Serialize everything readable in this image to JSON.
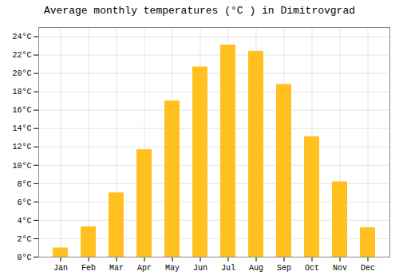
{
  "chart_data": {
    "type": "bar",
    "title": "Average monthly temperatures (°C ) in Dimitrovgrad",
    "categories": [
      "Jan",
      "Feb",
      "Mar",
      "Apr",
      "May",
      "Jun",
      "Jul",
      "Aug",
      "Sep",
      "Oct",
      "Nov",
      "Dec"
    ],
    "values": [
      1.0,
      3.3,
      7.0,
      11.7,
      17.0,
      20.7,
      23.1,
      22.4,
      18.8,
      13.1,
      8.2,
      3.2
    ],
    "color": "#FFC020",
    "ylim": [
      0,
      25
    ],
    "yticks": [
      {
        "value": 0,
        "label": "0°C"
      },
      {
        "value": 2,
        "label": "2°C"
      },
      {
        "value": 4,
        "label": "4°C"
      },
      {
        "value": 6,
        "label": "6°C"
      },
      {
        "value": 8,
        "label": "8°C"
      },
      {
        "value": 10,
        "label": "10°C"
      },
      {
        "value": 12,
        "label": "12°C"
      },
      {
        "value": 14,
        "label": "14°C"
      },
      {
        "value": 16,
        "label": "16°C"
      },
      {
        "value": 18,
        "label": "18°C"
      },
      {
        "value": 20,
        "label": "20°C"
      },
      {
        "value": 22,
        "label": "22°C"
      },
      {
        "value": 24,
        "label": "24°C"
      }
    ],
    "grid": true
  }
}
